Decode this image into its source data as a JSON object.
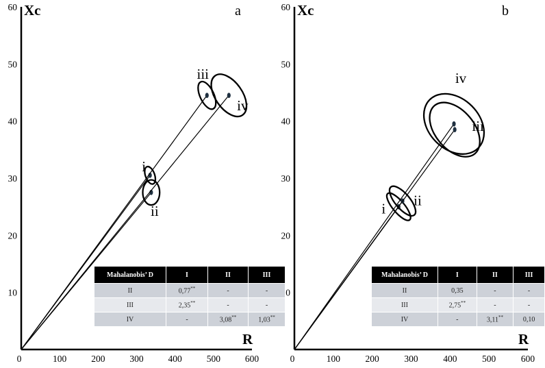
{
  "chart_data": [
    {
      "type": "scatter",
      "panel_label": "a",
      "ylabel": "Xc",
      "xlabel": "R",
      "xlim": [
        0,
        600
      ],
      "ylim": [
        0,
        60
      ],
      "xticks": [
        0,
        100,
        200,
        300,
        400,
        500,
        600
      ],
      "yticks": [
        10,
        20,
        30,
        40,
        50,
        60
      ],
      "groups": [
        {
          "name": "i",
          "x": 335,
          "y": 30.5,
          "ellipse": {
            "rx": 12,
            "ry": 1.6,
            "angle_deg": 20
          }
        },
        {
          "name": "ii",
          "x": 338,
          "y": 27.5,
          "ellipse": {
            "rx": 22,
            "ry": 2.2,
            "angle_deg": 0
          }
        },
        {
          "name": "iii",
          "x": 483,
          "y": 44.5,
          "ellipse": {
            "rx": 18,
            "ry": 2.6,
            "angle_deg": 25
          }
        },
        {
          "name": "iv",
          "x": 540,
          "y": 44.5,
          "ellipse": {
            "rx": 35,
            "ry": 4.2,
            "angle_deg": 35
          }
        }
      ],
      "table": {
        "headers": [
          "Mahalanobis’ D",
          "I",
          "II",
          "III"
        ],
        "rows": [
          [
            "II",
            "0,77**",
            "-",
            "-"
          ],
          [
            "III",
            "2,35**",
            "-",
            "-"
          ],
          [
            "IV",
            "-",
            "3,08**",
            "1,03**"
          ]
        ]
      }
    },
    {
      "type": "scatter",
      "panel_label": "b",
      "ylabel": "Xc",
      "xlabel": "R",
      "xlim": [
        0,
        600
      ],
      "ylim": [
        0,
        60
      ],
      "xticks": [
        0,
        100,
        200,
        300,
        400,
        500,
        600
      ],
      "yticks": [
        10,
        20,
        30,
        40,
        50,
        60
      ],
      "groups": [
        {
          "name": "i",
          "x": 268,
          "y": 25.0,
          "ellipse": {
            "rx": 15,
            "ry": 3.0,
            "angle_deg": 40
          }
        },
        {
          "name": "ii",
          "x": 278,
          "y": 26.0,
          "ellipse": {
            "rx": 19,
            "ry": 3.2,
            "angle_deg": 40
          }
        },
        {
          "name": "iii",
          "x": 412,
          "y": 38.5,
          "ellipse": {
            "rx": 50,
            "ry": 5.5,
            "angle_deg": 40
          }
        },
        {
          "name": "iv",
          "x": 410,
          "y": 39.5,
          "ellipse": {
            "rx": 65,
            "ry": 6.0,
            "angle_deg": 45
          }
        }
      ],
      "table": {
        "headers": [
          "Mahalanobis’ D",
          "I",
          "II",
          "III"
        ],
        "rows": [
          [
            "II",
            "0,35",
            "-",
            "-"
          ],
          [
            "III",
            "2,75**",
            "-",
            "-"
          ],
          [
            "IV",
            "-",
            "3,11**",
            "0,10"
          ]
        ]
      }
    }
  ]
}
